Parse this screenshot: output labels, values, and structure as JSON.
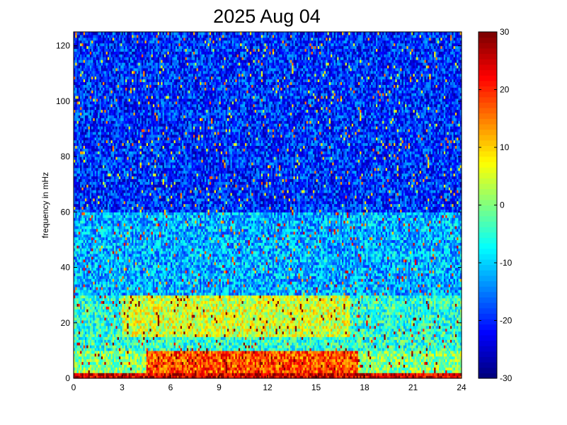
{
  "chart_data": {
    "type": "heatmap",
    "title": "2025 Aug 04",
    "xlabel": "",
    "ylabel": "frequency in mHz",
    "xlim": [
      0,
      24
    ],
    "ylim": [
      0,
      125
    ],
    "x_ticks": [
      "0",
      "3",
      "6",
      "9",
      "12",
      "15",
      "18",
      "21",
      "24"
    ],
    "y_ticks": [
      "0",
      "20",
      "40",
      "60",
      "80",
      "100",
      "120"
    ],
    "colorbar": {
      "colormap": "jet",
      "range": [
        -30,
        30
      ],
      "ticks": [
        "30",
        "20",
        "10",
        "0",
        "-10",
        "-20",
        "-30"
      ]
    },
    "x_step": 0.1,
    "y_step": 1,
    "grid": false,
    "regions": [
      {
        "x": [
          0,
          24
        ],
        "y": [
          0,
          2
        ],
        "value": 25
      },
      {
        "x": [
          0,
          24
        ],
        "y": [
          2,
          10
        ],
        "value": 0
      },
      {
        "x": [
          4.5,
          17.5
        ],
        "y": [
          2,
          18
        ],
        "value": 18
      },
      {
        "x": [
          0,
          24
        ],
        "y": [
          10,
          30
        ],
        "value": -5
      },
      {
        "x": [
          3,
          17
        ],
        "y": [
          15,
          55
        ],
        "value": 5
      },
      {
        "x": [
          0,
          24
        ],
        "y": [
          30,
          60
        ],
        "value": -12
      },
      {
        "x": [
          0,
          24
        ],
        "y": [
          60,
          125
        ],
        "value": -20
      }
    ],
    "noise_amplitude": 8
  }
}
